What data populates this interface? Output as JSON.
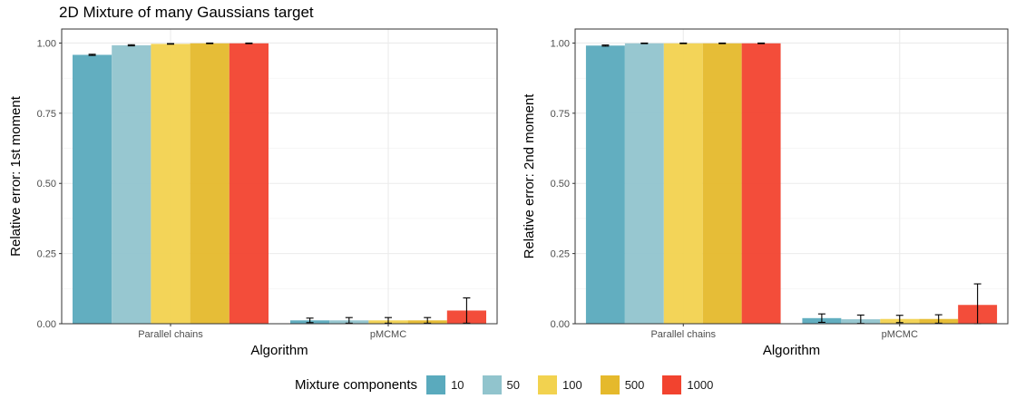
{
  "title": "2D Mixture of many Gaussians target",
  "legend": {
    "title": "Mixture components",
    "items": [
      {
        "label": "10",
        "color": "#5aaabd"
      },
      {
        "label": "50",
        "color": "#91c4cd"
      },
      {
        "label": "100",
        "color": "#f2d24f"
      },
      {
        "label": "500",
        "color": "#e5b92c"
      },
      {
        "label": "1000",
        "color": "#f2432f"
      }
    ]
  },
  "chart_data": [
    {
      "type": "bar",
      "ylabel": "Relative error: 1st moment",
      "xlabel": "Algorithm",
      "categories": [
        "Parallel chains",
        "pMCMC"
      ],
      "ylim": [
        0,
        1.05
      ],
      "yticks": [
        "0.00",
        "0.25",
        "0.50",
        "0.75",
        "1.00"
      ],
      "grid": true,
      "series": [
        {
          "name": "10",
          "values": [
            0.958,
            0.012
          ],
          "err": [
            0.002,
            0.008
          ]
        },
        {
          "name": "50",
          "values": [
            0.992,
            0.012
          ],
          "err": [
            0.002,
            0.01
          ]
        },
        {
          "name": "100",
          "values": [
            0.997,
            0.012
          ],
          "err": [
            0.001,
            0.01
          ]
        },
        {
          "name": "500",
          "values": [
            0.999,
            0.012
          ],
          "err": [
            0.001,
            0.01
          ]
        },
        {
          "name": "1000",
          "values": [
            0.999,
            0.047
          ],
          "err": [
            0.001,
            0.045
          ]
        }
      ]
    },
    {
      "type": "bar",
      "ylabel": "Relative error: 2nd moment",
      "xlabel": "Algorithm",
      "categories": [
        "Parallel chains",
        "pMCMC"
      ],
      "ylim": [
        0,
        1.05
      ],
      "yticks": [
        "0.00",
        "0.25",
        "0.50",
        "0.75",
        "1.00"
      ],
      "grid": true,
      "series": [
        {
          "name": "10",
          "values": [
            0.991,
            0.02
          ],
          "err": [
            0.002,
            0.015
          ]
        },
        {
          "name": "50",
          "values": [
            0.999,
            0.016
          ],
          "err": [
            0.001,
            0.015
          ]
        },
        {
          "name": "100",
          "values": [
            0.999,
            0.017
          ],
          "err": [
            0.001,
            0.013
          ]
        },
        {
          "name": "500",
          "values": [
            0.999,
            0.017
          ],
          "err": [
            0.001,
            0.015
          ]
        },
        {
          "name": "1000",
          "values": [
            0.999,
            0.067
          ],
          "err": [
            0.001,
            0.075
          ]
        }
      ]
    }
  ]
}
